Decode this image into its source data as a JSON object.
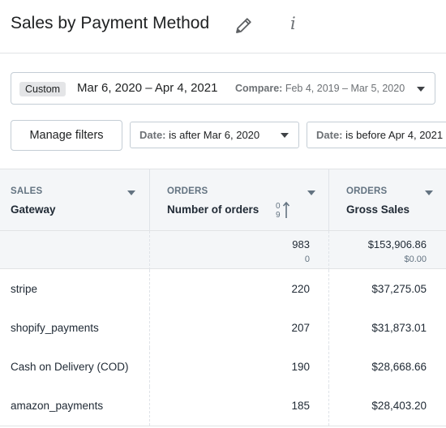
{
  "header": {
    "title": "Sales by Payment Method",
    "edit_icon": "pencil-icon",
    "info_icon": "info-icon",
    "info_glyph": "i"
  },
  "date_picker": {
    "badge": "Custom",
    "range": "Mar 6, 2020 – Apr 4, 2021",
    "compare_label": "Compare:",
    "compare_range": "Feb 4, 2019 – Mar 5, 2020"
  },
  "filters": {
    "manage_label": "Manage filters",
    "items": [
      {
        "label": "Date:",
        "value": "is after Mar 6, 2020"
      },
      {
        "label": "Date:",
        "value": "is before Apr 4, 2021"
      }
    ]
  },
  "table": {
    "columns": [
      {
        "group": "SALES",
        "name": "Gateway"
      },
      {
        "group": "ORDERS",
        "name": "Number of orders",
        "sort_icon": "sort-ascending-icon"
      },
      {
        "group": "ORDERS",
        "name": "Gross Sales"
      }
    ],
    "totals": {
      "orders": "983",
      "orders_compare": "0",
      "gross": "$153,906.86",
      "gross_compare": "$0.00"
    },
    "rows": [
      {
        "gateway": "stripe",
        "orders": "220",
        "gross": "$37,275.05"
      },
      {
        "gateway": "shopify_payments",
        "orders": "207",
        "gross": "$31,873.01"
      },
      {
        "gateway": "Cash on Delivery (COD)",
        "orders": "190",
        "gross": "$28,668.66"
      },
      {
        "gateway": "amazon_payments",
        "orders": "185",
        "gross": "$28,403.20"
      }
    ]
  }
}
